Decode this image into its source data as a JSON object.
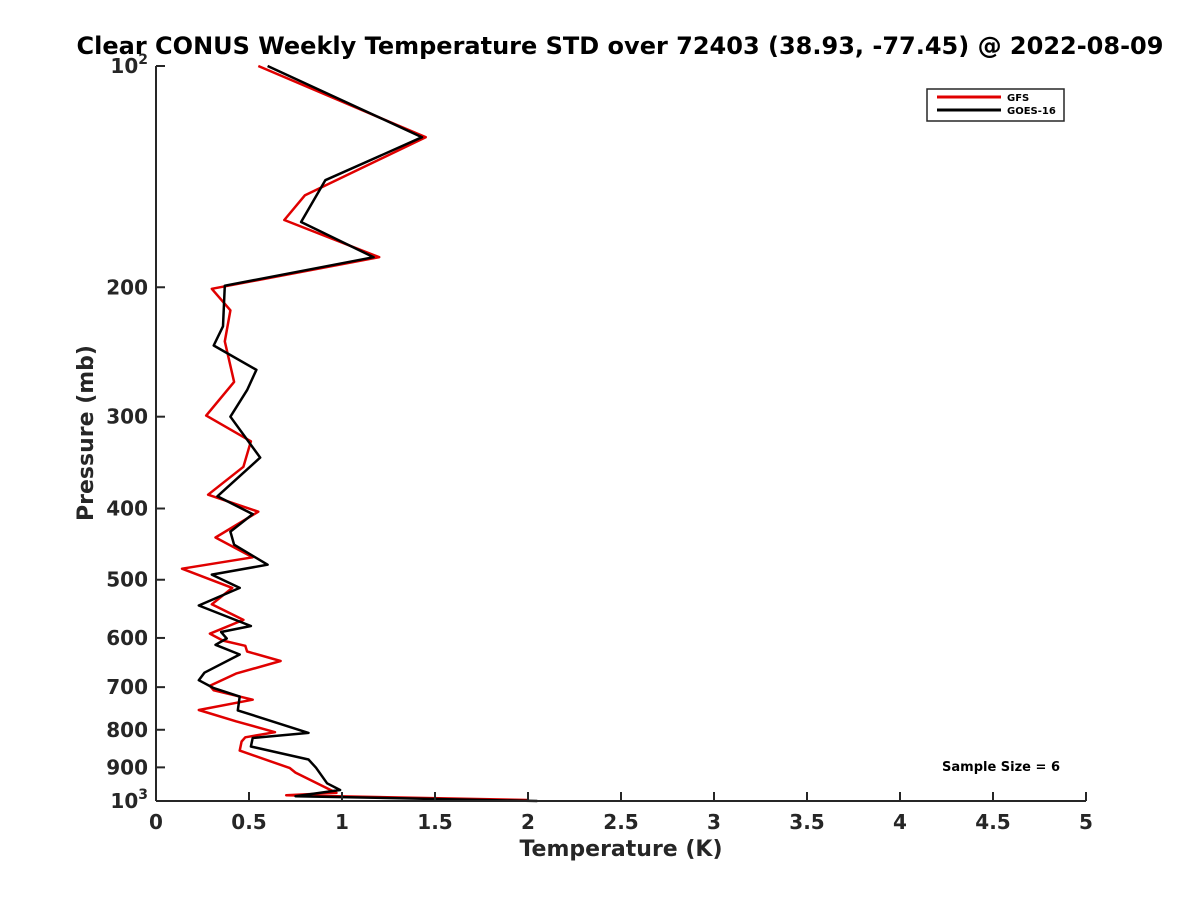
{
  "chart_data": {
    "type": "line",
    "title": "Clear CONUS Weekly Temperature STD over 72403 (38.93, -77.45) @ 2022-08-09",
    "xlabel": "Temperature (K)",
    "ylabel": "Pressure (mb)",
    "xlim": [
      0,
      5
    ],
    "ylim": [
      100,
      1000
    ],
    "y_scale": "log",
    "y_reversed": true,
    "x_ticks": [
      0,
      0.5,
      1,
      1.5,
      2,
      2.5,
      3,
      3.5,
      4,
      4.5,
      5
    ],
    "x_tick_labels": [
      "0",
      "0.5",
      "1",
      "1.5",
      "2",
      "2.5",
      "3",
      "3.5",
      "4",
      "4.5",
      "5"
    ],
    "y_ticks": [
      {
        "value": 100,
        "label": "10",
        "sup": "2"
      },
      {
        "value": 200,
        "label": "200",
        "sup": ""
      },
      {
        "value": 300,
        "label": "300",
        "sup": ""
      },
      {
        "value": 400,
        "label": "400",
        "sup": ""
      },
      {
        "value": 500,
        "label": "500",
        "sup": ""
      },
      {
        "value": 600,
        "label": "600",
        "sup": ""
      },
      {
        "value": 700,
        "label": "700",
        "sup": ""
      },
      {
        "value": 800,
        "label": "800",
        "sup": ""
      },
      {
        "value": 900,
        "label": "900",
        "sup": ""
      },
      {
        "value": 1000,
        "label": "10",
        "sup": "3"
      }
    ],
    "grid": false,
    "legend_position": "top-right",
    "annotation": "Sample Size = 6",
    "series": [
      {
        "name": "GFS",
        "color": "#e00000",
        "points": [
          [
            0.55,
            100
          ],
          [
            1.45,
            125
          ],
          [
            0.8,
            150
          ],
          [
            0.69,
            162
          ],
          [
            1.2,
            182
          ],
          [
            0.3,
            201
          ],
          [
            0.4,
            215
          ],
          [
            0.37,
            237
          ],
          [
            0.42,
            269
          ],
          [
            0.27,
            299
          ],
          [
            0.51,
            324
          ],
          [
            0.47,
            351
          ],
          [
            0.28,
            383
          ],
          [
            0.55,
            404
          ],
          [
            0.32,
            438
          ],
          [
            0.52,
            466
          ],
          [
            0.14,
            483
          ],
          [
            0.41,
            513
          ],
          [
            0.3,
            540
          ],
          [
            0.47,
            567
          ],
          [
            0.29,
            592
          ],
          [
            0.36,
            605
          ],
          [
            0.48,
            615
          ],
          [
            0.49,
            626
          ],
          [
            0.67,
            645
          ],
          [
            0.43,
            671
          ],
          [
            0.29,
            697
          ],
          [
            0.31,
            707
          ],
          [
            0.52,
            728
          ],
          [
            0.23,
            752
          ],
          [
            0.43,
            779
          ],
          [
            0.64,
            806
          ],
          [
            0.48,
            819
          ],
          [
            0.46,
            830
          ],
          [
            0.45,
            854
          ],
          [
            0.72,
            902
          ],
          [
            0.75,
            915
          ],
          [
            0.97,
            975
          ],
          [
            0.7,
            982
          ],
          [
            2.0,
            997
          ]
        ]
      },
      {
        "name": "GOES-16",
        "color": "#000000",
        "points": [
          [
            0.6,
            100
          ],
          [
            1.43,
            125
          ],
          [
            0.91,
            143
          ],
          [
            0.78,
            163
          ],
          [
            1.17,
            182
          ],
          [
            0.37,
            199
          ],
          [
            0.36,
            226
          ],
          [
            0.31,
            240
          ],
          [
            0.54,
            259
          ],
          [
            0.49,
            276
          ],
          [
            0.4,
            300
          ],
          [
            0.56,
            341
          ],
          [
            0.33,
            385
          ],
          [
            0.52,
            407
          ],
          [
            0.4,
            430
          ],
          [
            0.42,
            448
          ],
          [
            0.6,
            477
          ],
          [
            0.3,
            492
          ],
          [
            0.45,
            513
          ],
          [
            0.23,
            542
          ],
          [
            0.51,
            578
          ],
          [
            0.35,
            589
          ],
          [
            0.38,
            601
          ],
          [
            0.32,
            613
          ],
          [
            0.45,
            632
          ],
          [
            0.26,
            669
          ],
          [
            0.23,
            685
          ],
          [
            0.31,
            702
          ],
          [
            0.45,
            721
          ],
          [
            0.44,
            753
          ],
          [
            0.82,
            808
          ],
          [
            0.52,
            821
          ],
          [
            0.51,
            843
          ],
          [
            0.82,
            878
          ],
          [
            0.86,
            901
          ],
          [
            0.92,
            946
          ],
          [
            0.99,
            966
          ],
          [
            0.75,
            985
          ],
          [
            2.05,
            1000
          ]
        ]
      }
    ]
  }
}
